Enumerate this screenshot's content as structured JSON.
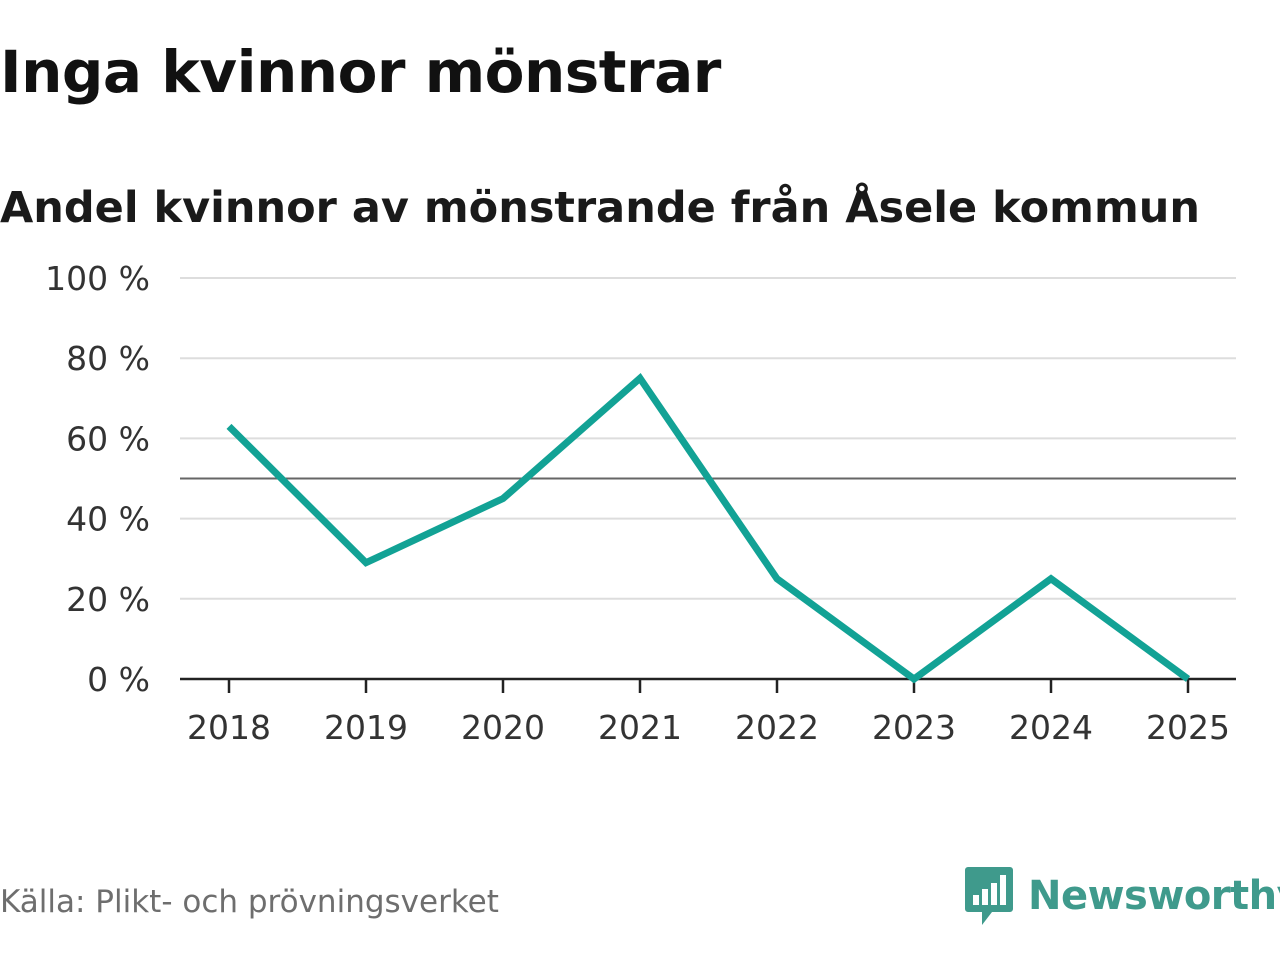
{
  "title": "Inga kvinnor mönstrar",
  "subtitle": "Andel kvinnor av mönstrande från Åsele kommun",
  "source": "Källa: Plikt- och prövningsverket",
  "logo": {
    "text": "Newsworthy",
    "icon": "newsworthy-logo-icon",
    "color": "#3f9a8c"
  },
  "colors": {
    "line": "#12a295",
    "grid": "#dddddd",
    "reference": "#666666",
    "axis": "#222222"
  },
  "chart_data": {
    "type": "line",
    "x": [
      "2018",
      "2019",
      "2020",
      "2021",
      "2022",
      "2023",
      "2024",
      "2025"
    ],
    "series": [
      {
        "values": [
          63,
          29,
          45,
          75,
          25,
          0,
          25,
          0
        ]
      }
    ],
    "ylim": [
      0,
      100
    ],
    "yticks": [
      0,
      20,
      40,
      60,
      80,
      100
    ],
    "ytick_labels": [
      "0 %",
      "20 %",
      "40 %",
      "60 %",
      "80 %",
      "100 %"
    ],
    "reference_line": 50,
    "grid": true
  }
}
